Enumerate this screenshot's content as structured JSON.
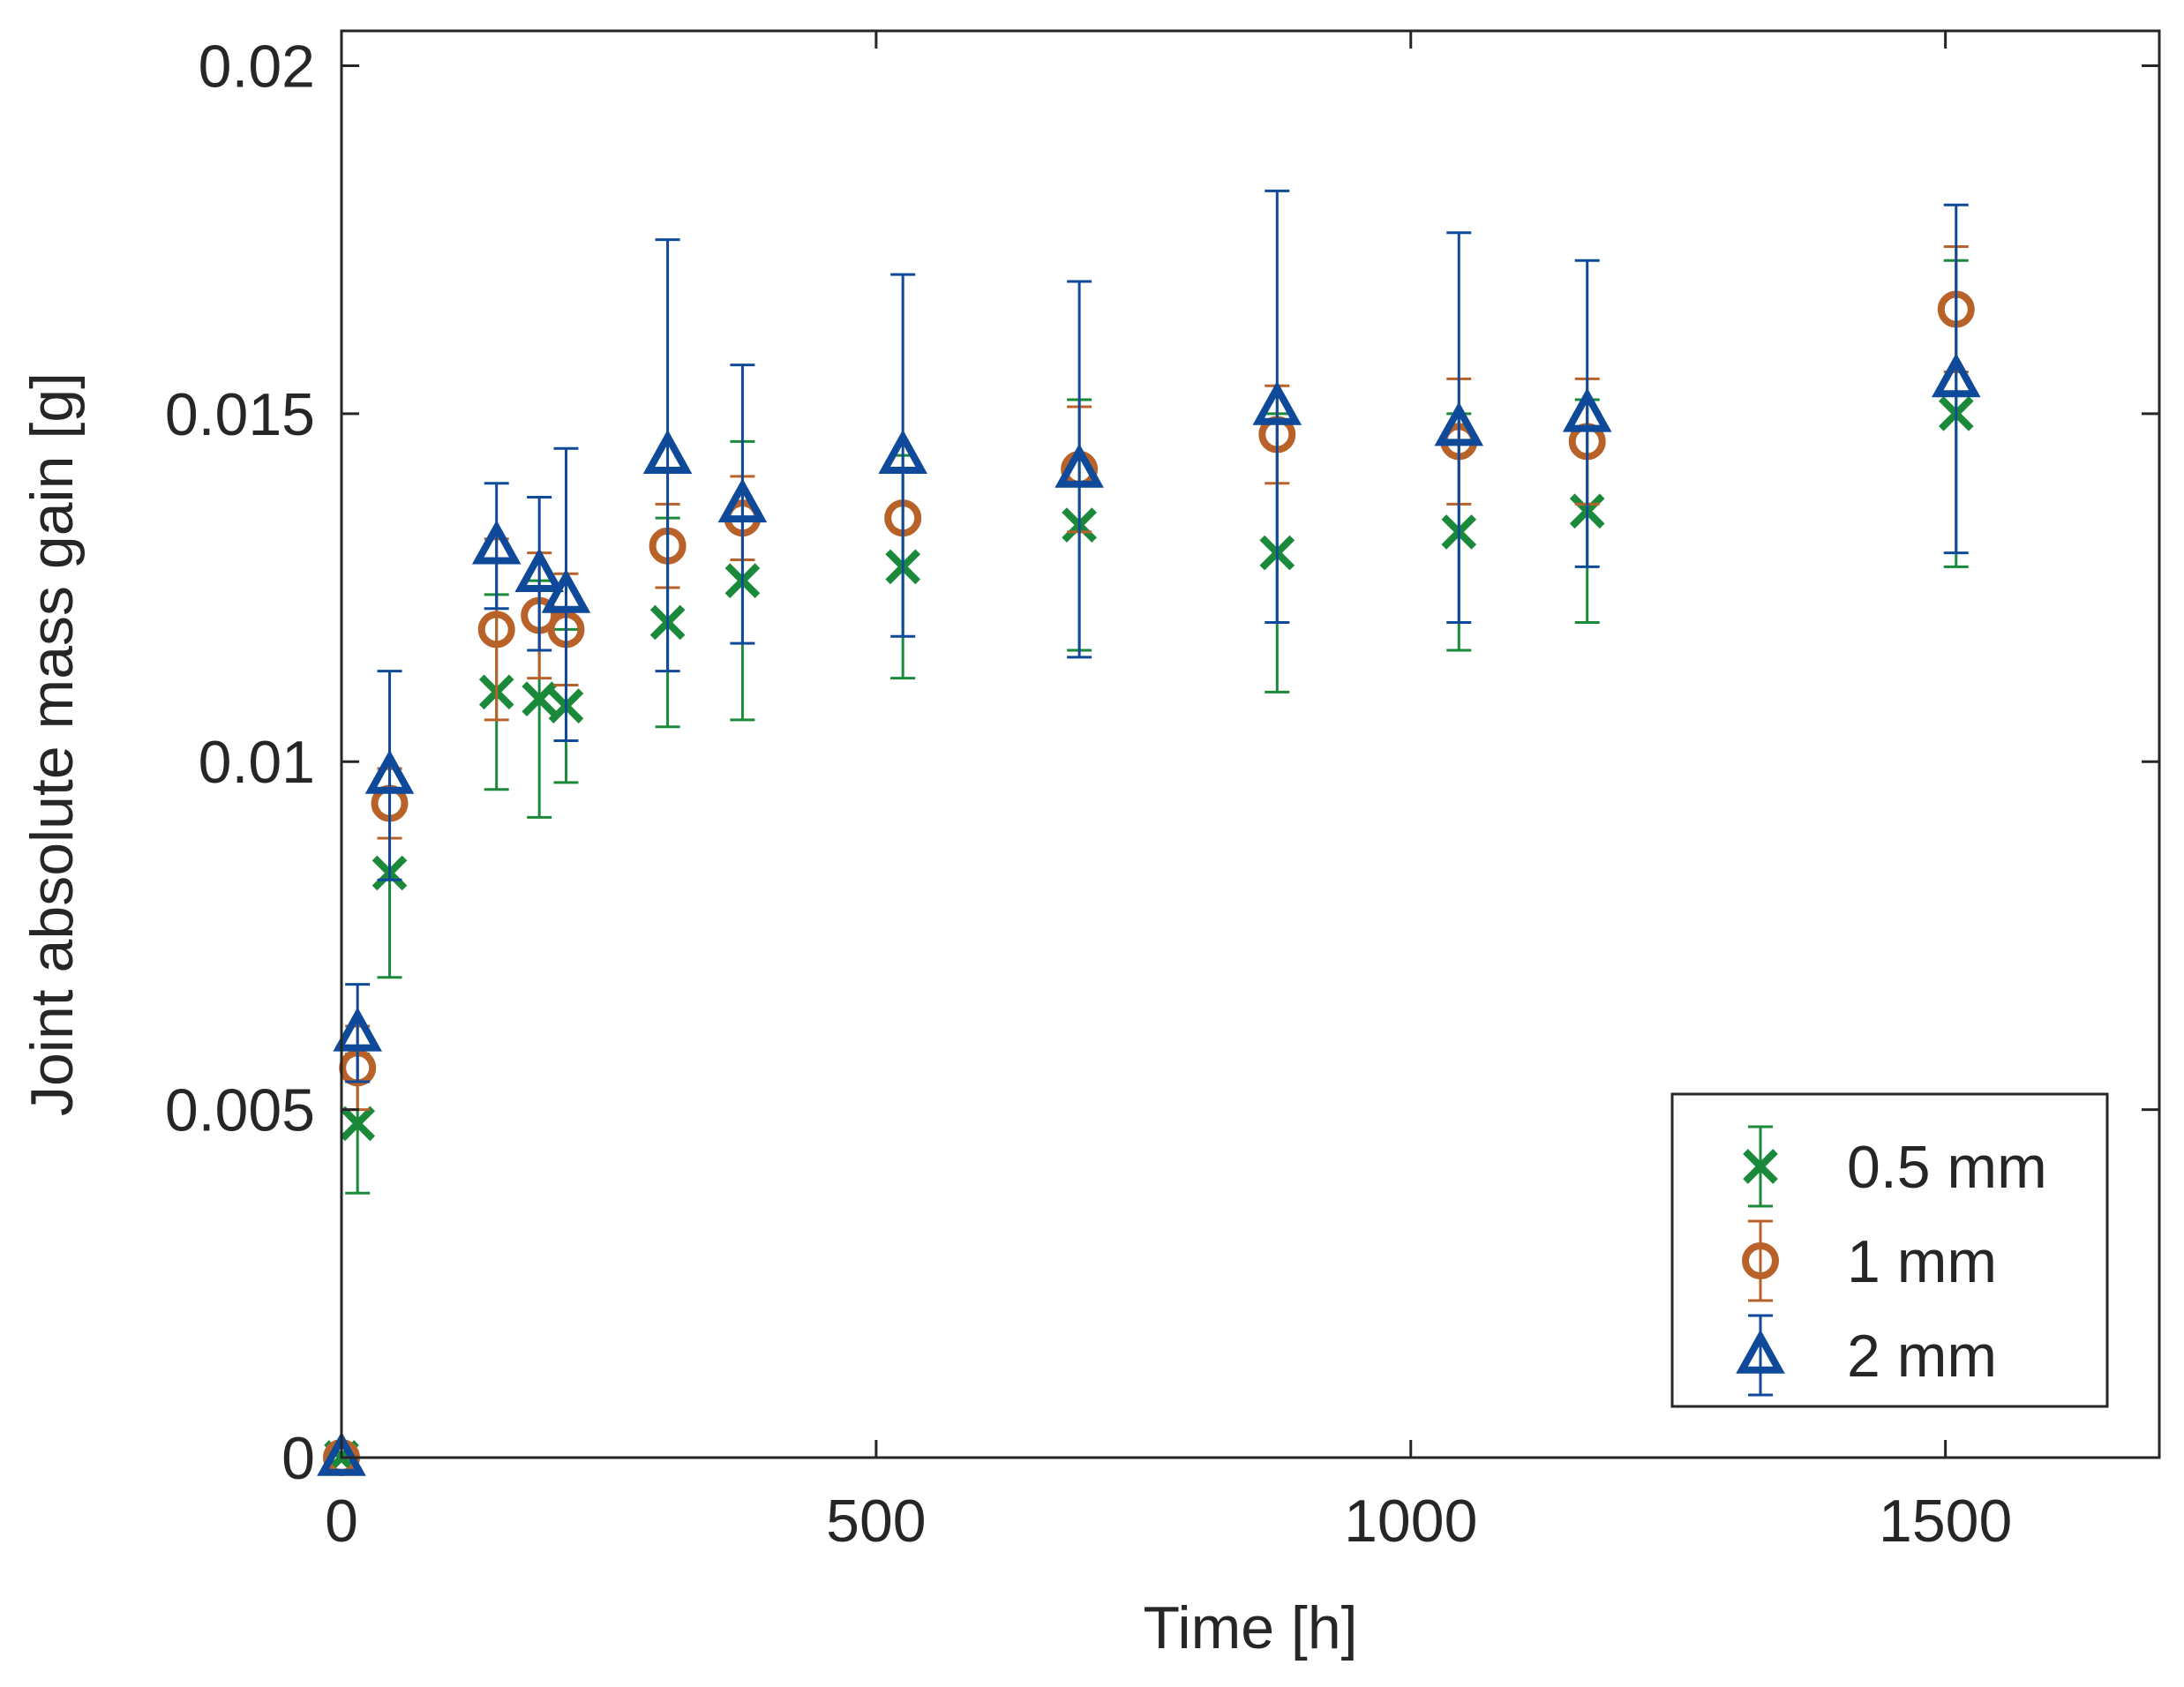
{
  "chart_data": {
    "type": "scatter",
    "title": "",
    "xlabel": "Time [h]",
    "ylabel": "Joint absolute mass gain [g]",
    "xlim": [
      0,
      1700
    ],
    "ylim": [
      0,
      0.0205
    ],
    "xticks": [
      0,
      500,
      1000,
      1500
    ],
    "xtick_labels": [
      "0",
      "500",
      "1000",
      "1500"
    ],
    "yticks": [
      0,
      0.005,
      0.01,
      0.015,
      0.02
    ],
    "ytick_labels": [
      "0",
      "0.005",
      "0.01",
      "0.015",
      "0.02"
    ],
    "legend_position": "bottom-right",
    "grid": false,
    "series": [
      {
        "name": "0.5 mm",
        "marker": "x",
        "color": "#1a8a3a",
        "points": [
          {
            "x": 0,
            "y": 0,
            "err": 0
          },
          {
            "x": 15,
            "y": 0.0048,
            "err": 0.001
          },
          {
            "x": 45,
            "y": 0.0084,
            "err": 0.0015
          },
          {
            "x": 145,
            "y": 0.011,
            "err": 0.0014
          },
          {
            "x": 185,
            "y": 0.0109,
            "err": 0.0017
          },
          {
            "x": 210,
            "y": 0.0108,
            "err": 0.0011
          },
          {
            "x": 305,
            "y": 0.012,
            "err": 0.0015
          },
          {
            "x": 375,
            "y": 0.0126,
            "err": 0.002
          },
          {
            "x": 525,
            "y": 0.0128,
            "err": 0.0016
          },
          {
            "x": 690,
            "y": 0.0134,
            "err": 0.0018
          },
          {
            "x": 875,
            "y": 0.013,
            "err": 0.002
          },
          {
            "x": 1045,
            "y": 0.0133,
            "err": 0.0017
          },
          {
            "x": 1165,
            "y": 0.0136,
            "err": 0.0016
          },
          {
            "x": 1510,
            "y": 0.015,
            "err": 0.0022
          }
        ]
      },
      {
        "name": "1 mm",
        "marker": "o",
        "color": "#b8622a",
        "points": [
          {
            "x": 0,
            "y": 0,
            "err": 0
          },
          {
            "x": 15,
            "y": 0.0056,
            "err": 0.0006
          },
          {
            "x": 45,
            "y": 0.0094,
            "err": 0.0005
          },
          {
            "x": 145,
            "y": 0.0119,
            "err": 0.0013
          },
          {
            "x": 185,
            "y": 0.0121,
            "err": 0.0009
          },
          {
            "x": 210,
            "y": 0.0119,
            "err": 0.0008
          },
          {
            "x": 305,
            "y": 0.0131,
            "err": 0.0006
          },
          {
            "x": 375,
            "y": 0.0135,
            "err": 0.0006
          },
          {
            "x": 525,
            "y": 0.0135,
            "err": 0
          },
          {
            "x": 690,
            "y": 0.0142,
            "err": 0.0009
          },
          {
            "x": 875,
            "y": 0.0147,
            "err": 0.0007
          },
          {
            "x": 1045,
            "y": 0.0146,
            "err": 0.0009
          },
          {
            "x": 1165,
            "y": 0.0146,
            "err": 0.0009
          },
          {
            "x": 1510,
            "y": 0.0165,
            "err": 0.0009
          }
        ]
      },
      {
        "name": "2 mm",
        "marker": "triangle",
        "color": "#0f4a9a",
        "points": [
          {
            "x": 0,
            "y": 0,
            "err": 0
          },
          {
            "x": 15,
            "y": 0.0061,
            "err": 0.0007
          },
          {
            "x": 45,
            "y": 0.0098,
            "err": 0.0015
          },
          {
            "x": 145,
            "y": 0.0131,
            "err": 0.0009
          },
          {
            "x": 185,
            "y": 0.0127,
            "err": 0.0011
          },
          {
            "x": 210,
            "y": 0.0124,
            "err": 0.0021
          },
          {
            "x": 305,
            "y": 0.0144,
            "err": 0.0031
          },
          {
            "x": 375,
            "y": 0.0137,
            "err": 0.002
          },
          {
            "x": 525,
            "y": 0.0144,
            "err": 0.0026
          },
          {
            "x": 690,
            "y": 0.0142,
            "err": 0.0027
          },
          {
            "x": 875,
            "y": 0.0151,
            "err": 0.0031
          },
          {
            "x": 1045,
            "y": 0.0148,
            "err": 0.0028
          },
          {
            "x": 1165,
            "y": 0.015,
            "err": 0.0022
          },
          {
            "x": 1510,
            "y": 0.0155,
            "err": 0.0025
          }
        ]
      }
    ]
  }
}
